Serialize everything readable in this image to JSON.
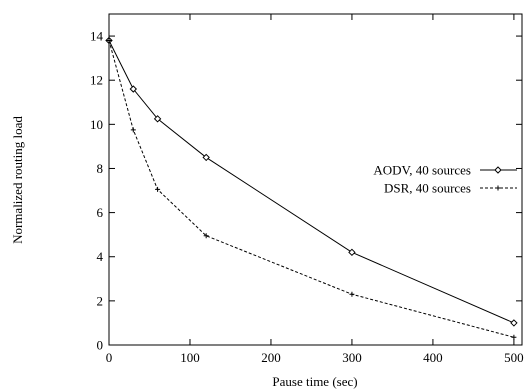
{
  "chart_data": {
    "type": "line",
    "xlabel": "Pause time (sec)",
    "ylabel": "Normalized routing load",
    "xlim": [
      0,
      510
    ],
    "ylim": [
      0,
      15
    ],
    "x_ticks": [
      0,
      100,
      200,
      300,
      400,
      500
    ],
    "y_ticks": [
      0,
      2,
      4,
      6,
      8,
      10,
      12,
      14
    ],
    "grid": false,
    "legend_position": "right",
    "series": [
      {
        "name": "AODV, 40 sources",
        "line_style": "solid",
        "marker": "diamond",
        "x": [
          0,
          30,
          60,
          120,
          300,
          500
        ],
        "y": [
          13.8,
          11.6,
          10.25,
          8.5,
          4.2,
          1.0
        ]
      },
      {
        "name": "DSR, 40 sources",
        "line_style": "dashed",
        "marker": "plus",
        "x": [
          0,
          30,
          60,
          120,
          300,
          500
        ],
        "y": [
          13.8,
          9.75,
          7.05,
          4.95,
          2.3,
          0.35
        ]
      }
    ]
  }
}
